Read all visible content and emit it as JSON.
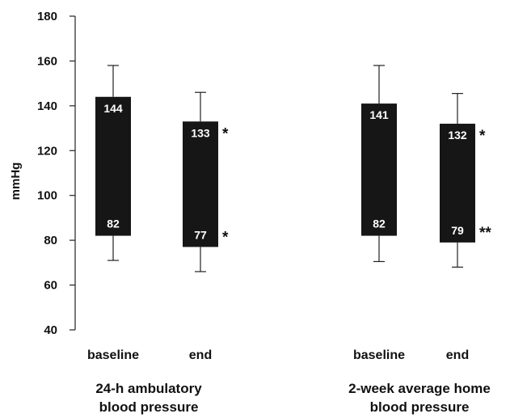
{
  "chart_data": {
    "type": "bar",
    "subtype": "floating-range-with-whiskers",
    "ylabel": "mmHg",
    "xlabel": "",
    "ylim": [
      40,
      180
    ],
    "yticks": [
      40,
      60,
      80,
      100,
      120,
      140,
      160,
      180
    ],
    "grid": false,
    "legend": "none",
    "bar_color": "#161616",
    "groups": [
      {
        "label_line1": "24-h ambulatory",
        "label_line2": "blood pressure",
        "bars": [
          {
            "category": "baseline",
            "systolic": 144,
            "diastolic": 82,
            "whisker_high": 158,
            "whisker_low": 71,
            "systolic_label": "144",
            "diastolic_label": "82",
            "systolic_sig": "",
            "diastolic_sig": ""
          },
          {
            "category": "end",
            "systolic": 133,
            "diastolic": 77,
            "whisker_high": 146,
            "whisker_low": 66,
            "systolic_label": "133",
            "diastolic_label": "77",
            "systolic_sig": "*",
            "diastolic_sig": "*"
          }
        ]
      },
      {
        "label_line1": "2-week average home",
        "label_line2": "blood pressure",
        "bars": [
          {
            "category": "baseline",
            "systolic": 141,
            "diastolic": 82,
            "whisker_high": 158,
            "whisker_low": 70.5,
            "systolic_label": "141",
            "diastolic_label": "82",
            "systolic_sig": "",
            "diastolic_sig": ""
          },
          {
            "category": "end",
            "systolic": 132,
            "diastolic": 79,
            "whisker_high": 145.5,
            "whisker_low": 68,
            "systolic_label": "132",
            "diastolic_label": "79",
            "systolic_sig": "*",
            "diastolic_sig": "**"
          }
        ]
      }
    ]
  }
}
